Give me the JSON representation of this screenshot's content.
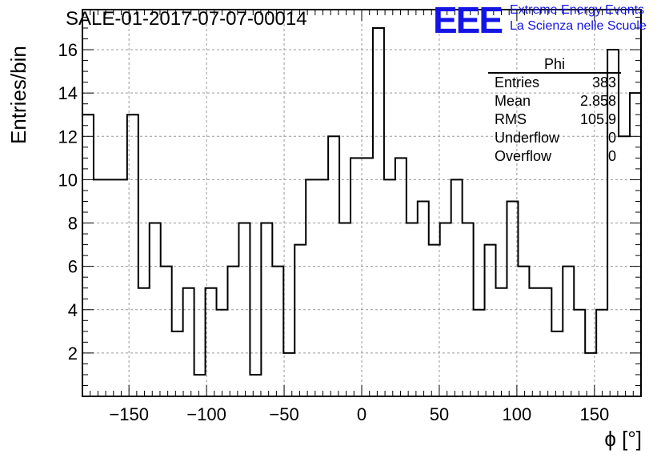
{
  "title": "SALE-01-2017-07-07-00014",
  "logo": {
    "letters": "EEE",
    "line1": "Extreme Energy Events",
    "line2": "La Scienza nelle Scuole",
    "color": "#1414e6"
  },
  "stats_box": {
    "name": "Phi",
    "rows": [
      {
        "label": "Entries",
        "value": "383"
      },
      {
        "label": "Mean",
        "value": "2.858"
      },
      {
        "label": "RMS",
        "value": "105.9"
      },
      {
        "label": "Underflow",
        "value": "0"
      },
      {
        "label": "Overflow",
        "value": "0"
      }
    ]
  },
  "chart_data": {
    "type": "histogram",
    "title": "SALE-01-2017-07-07-00014",
    "xlabel": "ϕ [°]",
    "ylabel": "Entries/bin",
    "xlim": [
      -180,
      180
    ],
    "ylim": [
      0,
      17.85
    ],
    "bin_width": 7.2,
    "xticks": [
      -150,
      -100,
      -50,
      0,
      50,
      100,
      150
    ],
    "xtick_labels": [
      "−150",
      "−100",
      "−50",
      "0",
      "50",
      "100",
      "150"
    ],
    "yticks": [
      2,
      4,
      6,
      8,
      10,
      12,
      14,
      16
    ],
    "grid": true,
    "counts": [
      13,
      10,
      10,
      10,
      13,
      5,
      8,
      6,
      3,
      5,
      1,
      5,
      4,
      6,
      8,
      1,
      8,
      6,
      2,
      7,
      10,
      10,
      12,
      8,
      11,
      11,
      17,
      10,
      11,
      8,
      9,
      7,
      8,
      10,
      8,
      4,
      7,
      5,
      9,
      6,
      5,
      5,
      3,
      6,
      4,
      2,
      4,
      16,
      12,
      14
    ]
  }
}
